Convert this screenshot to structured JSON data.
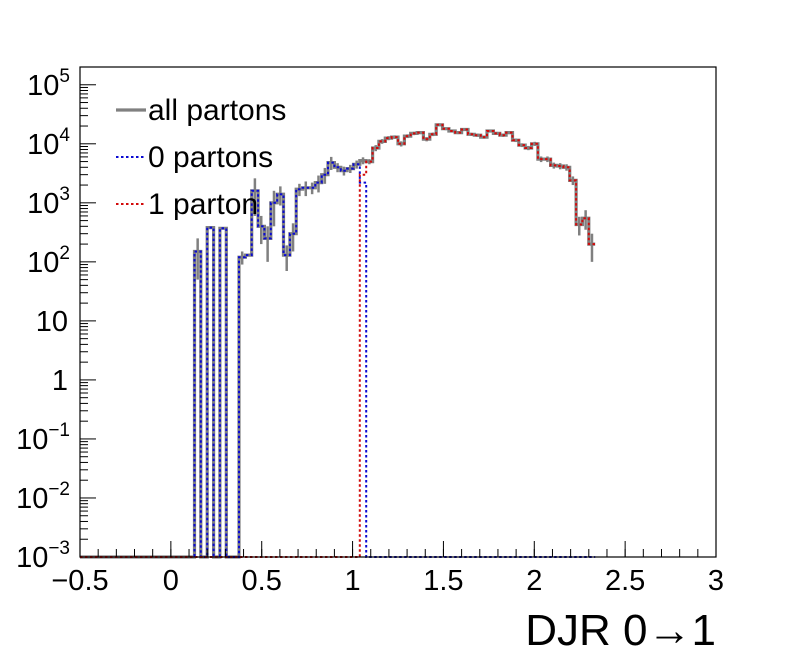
{
  "chart_data": {
    "type": "line",
    "xlabel": "DJR 0→1",
    "ylabel": "",
    "xlim": [
      -0.5,
      3.0
    ],
    "ylim": [
      0.001,
      200000
    ],
    "yscale": "log",
    "x_ticks": [
      {
        "value": -0.5,
        "label": "−0.5"
      },
      {
        "value": 0,
        "label": "0"
      },
      {
        "value": 0.5,
        "label": "0.5"
      },
      {
        "value": 1,
        "label": "1"
      },
      {
        "value": 1.5,
        "label": "1.5"
      },
      {
        "value": 2,
        "label": "2"
      },
      {
        "value": 2.5,
        "label": "2.5"
      },
      {
        "value": 3,
        "label": "3"
      }
    ],
    "y_ticks": [
      {
        "value": 0.001,
        "base": "10",
        "exp": "−3"
      },
      {
        "value": 0.01,
        "base": "10",
        "exp": "−2"
      },
      {
        "value": 0.1,
        "base": "10",
        "exp": "−1"
      },
      {
        "value": 1,
        "base": "1",
        "exp": ""
      },
      {
        "value": 10,
        "base": "10",
        "exp": ""
      },
      {
        "value": 100,
        "base": "10",
        "exp": "2"
      },
      {
        "value": 1000,
        "base": "10",
        "exp": "3"
      },
      {
        "value": 10000,
        "base": "10",
        "exp": "4"
      },
      {
        "value": 100000,
        "base": "10",
        "exp": "5"
      }
    ],
    "grid": false,
    "legend_position": "top-left",
    "bin_width": 0.035,
    "series": [
      {
        "name": "all partons",
        "color": "#808080",
        "style": "solid",
        "values": [
          0.001,
          0.001,
          0.001,
          0.001,
          0.001,
          0.001,
          0.001,
          0.001,
          0.001,
          0.001,
          0.001,
          0.001,
          0.001,
          0.001,
          0.001,
          0.001,
          0.001,
          0.001,
          150,
          0.001,
          380,
          0.001,
          370,
          0.001,
          0.001,
          120,
          130,
          1600,
          400,
          250,
          1000,
          1400,
          130,
          300,
          1700,
          1800,
          1800,
          2200,
          3000,
          4800,
          4000,
          3500,
          3800,
          4500,
          5200,
          5000,
          8500,
          11000,
          12500,
          13000,
          10000,
          13500,
          15000,
          15500,
          12000,
          14500,
          21000,
          18000,
          16500,
          15500,
          17500,
          14500,
          14000,
          13000,
          16500,
          15000,
          14000,
          15500,
          11500,
          9500,
          8500,
          10000,
          5500,
          5500,
          4300,
          4200,
          4000,
          2400,
          430,
          550,
          200
        ],
        "errors": [
          0,
          0,
          0,
          0,
          0,
          0,
          0,
          0,
          0,
          0,
          0,
          0,
          0,
          0,
          0,
          0,
          0,
          0,
          100,
          0,
          0,
          0,
          0,
          0,
          0,
          30,
          0,
          1000,
          200,
          150,
          600,
          500,
          60,
          150,
          400,
          500,
          400,
          700,
          900,
          1200,
          700,
          600,
          600,
          700,
          700,
          500,
          1000,
          1000,
          1000,
          900,
          1000,
          1000,
          1000,
          900,
          1000,
          1000,
          1200,
          1000,
          900,
          900,
          1000,
          900,
          900,
          800,
          900,
          900,
          900,
          900,
          800,
          700,
          700,
          800,
          600,
          600,
          500,
          500,
          500,
          400,
          150,
          200,
          100
        ]
      },
      {
        "name": "0 partons",
        "color": "#0a0ad2",
        "style": "dotted",
        "values": [
          0.001,
          0.001,
          0.001,
          0.001,
          0.001,
          0.001,
          0.001,
          0.001,
          0.001,
          0.001,
          0.001,
          0.001,
          0.001,
          0.001,
          0.001,
          0.001,
          0.001,
          0.001,
          150,
          0.001,
          380,
          0.001,
          370,
          0.001,
          0.001,
          120,
          130,
          1600,
          400,
          250,
          1000,
          1400,
          130,
          300,
          1700,
          1800,
          1800,
          2200,
          3000,
          4800,
          4000,
          3500,
          3800,
          4500,
          2200,
          0.001,
          0.001,
          0.001,
          0.001,
          0.001,
          0.001,
          0.001,
          0.001,
          0.001,
          0.001,
          0.001,
          0.001,
          0.001,
          0.001,
          0.001,
          0.001,
          0.001,
          0.001,
          0.001,
          0.001,
          0.001,
          0.001,
          0.001,
          0.001,
          0.001,
          0.001,
          0.001,
          0.001,
          0.001,
          0.001,
          0.001,
          0.001,
          0.001,
          0.001,
          0.001,
          0.001
        ]
      },
      {
        "name": "1 parton",
        "color": "#d20a0a",
        "style": "dotted",
        "values": [
          0.001,
          0.001,
          0.001,
          0.001,
          0.001,
          0.001,
          0.001,
          0.001,
          0.001,
          0.001,
          0.001,
          0.001,
          0.001,
          0.001,
          0.001,
          0.001,
          0.001,
          0.001,
          0.001,
          0.001,
          0.001,
          0.001,
          0.001,
          0.001,
          0.001,
          0.001,
          0.001,
          0.001,
          0.001,
          0.001,
          0.001,
          0.001,
          0.001,
          0.001,
          0.001,
          0.001,
          0.001,
          0.001,
          0.001,
          0.001,
          0.001,
          0.001,
          0.001,
          0.001,
          3000,
          5000,
          8500,
          11000,
          12500,
          13000,
          10000,
          13500,
          15000,
          15500,
          12000,
          14500,
          21000,
          18000,
          16500,
          15500,
          17500,
          14500,
          14000,
          13000,
          16500,
          15000,
          14000,
          15500,
          11500,
          9500,
          8500,
          10000,
          5500,
          5500,
          4300,
          4200,
          4000,
          2400,
          430,
          550,
          200
        ]
      }
    ]
  }
}
